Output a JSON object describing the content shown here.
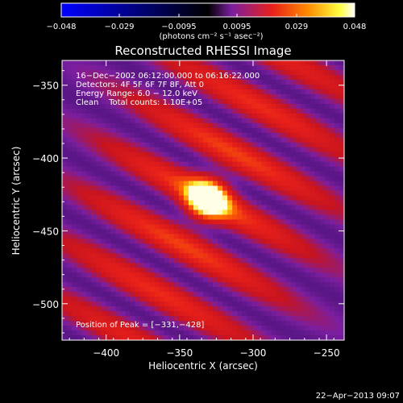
{
  "chart_data": {
    "type": "heatmap",
    "title": "Reconstructed RHESSI Image",
    "xlabel": "Heliocentric X (arcsec)",
    "ylabel": "Heliocentric Y (arcsec)",
    "xlim": [
      -430,
      -238
    ],
    "ylim": [
      -525,
      -333
    ],
    "x_ticks": [
      -400,
      -350,
      -300,
      -250
    ],
    "x_tick_labels": [
      "−400",
      "−350",
      "−300",
      "−250"
    ],
    "y_ticks": [
      -350,
      -400,
      -450,
      -500
    ],
    "y_tick_labels": [
      "−350",
      "−400",
      "−450",
      "−500"
    ],
    "colorbar": {
      "range": [
        -0.048,
        0.048
      ],
      "ticks": [
        -0.048,
        -0.029,
        -0.0095,
        0.0095,
        0.029,
        0.048
      ],
      "tick_labels": [
        "−0.048",
        "−0.029",
        "−0.0095",
        "0.0095",
        "0.029",
        "0.048"
      ],
      "label": "(photons cm⁻² s⁻¹ asec⁻²)",
      "colors": [
        "#0000ff",
        "#000000",
        "#7a1fa0",
        "#e8201a",
        "#ff8a00",
        "#ffff40",
        "#ffffff"
      ]
    },
    "annotations": {
      "time": "16−Dec−2002 06:12:00.000 to 06:16:22.000",
      "detectors": "Detectors: 4F 5F 6F 7F 8F, Att 0",
      "energy": "Energy Range: 6.0 − 12.0 keV",
      "method_counts": "Clean    Total counts: 1.10E+05",
      "peak": "Position of Peak = [−331,−428]"
    },
    "peak": {
      "x": -331,
      "y": -428
    },
    "footer": "22−Apr−2013 09:07"
  }
}
